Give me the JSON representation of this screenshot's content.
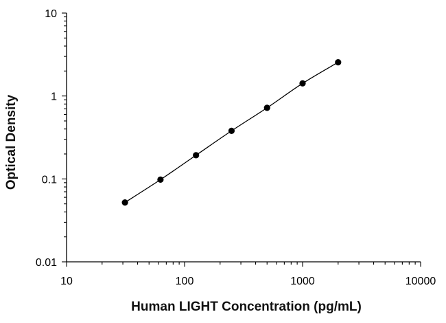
{
  "chart_data": {
    "type": "scatter",
    "title": "",
    "xlabel": "Human LIGHT Concentration (pg/mL)",
    "ylabel": "Optical Density",
    "x_scale": "log",
    "y_scale": "log",
    "xlim": [
      10,
      10000
    ],
    "ylim": [
      0.01,
      10
    ],
    "x_ticks": [
      10,
      100,
      1000,
      10000
    ],
    "x_tick_labels": [
      "10",
      "100",
      "1000",
      "10000"
    ],
    "y_ticks": [
      0.01,
      0.1,
      1,
      10
    ],
    "y_tick_labels": [
      "0.01",
      "0.1",
      "1",
      "10"
    ],
    "grid": false,
    "legend": "none",
    "series": [
      {
        "x": [
          31.25,
          62.5,
          125,
          250,
          500,
          1000,
          2000
        ],
        "y": [
          0.052,
          0.098,
          0.193,
          0.38,
          0.72,
          1.42,
          2.55
        ],
        "marker": "circle",
        "fit_line": true,
        "color": "#000000"
      }
    ]
  }
}
